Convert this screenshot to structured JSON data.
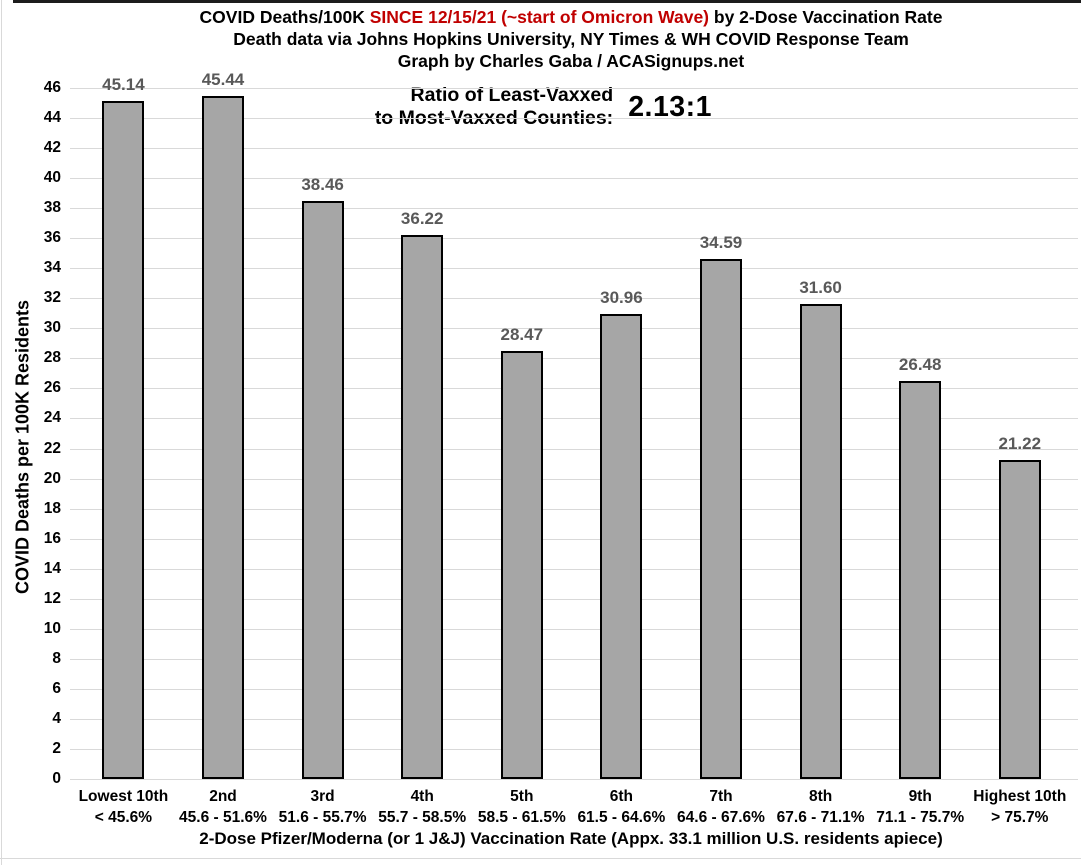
{
  "header": {
    "title_part1": "COVID Deaths/100K ",
    "title_part2_red": "SINCE 12/15/21 (~start of Omicron Wave)",
    "title_part3": " by 2-Dose Vaccination Rate",
    "subtitle1": "Death data via Johns Hopkins University, NY Times & WH COVID Response Team",
    "subtitle2": "Graph by Charles Gaba / ACASignups.net"
  },
  "annotation": {
    "label_line1": "Ratio of Least-Vaxxed",
    "label_line2": "to Most-Vaxxed Counties:",
    "value": "2.13:1"
  },
  "chart_data": {
    "type": "bar",
    "title": "COVID Deaths/100K SINCE 12/15/21 (~start of Omicron Wave) by 2-Dose Vaccination Rate",
    "subtitle": "Death data via Johns Hopkins University, NY Times & WH COVID Response Team",
    "credit": "Graph by Charles Gaba / ACASignups.net",
    "categories": [
      {
        "label": "Lowest 10th",
        "range": "< 45.6%"
      },
      {
        "label": "2nd",
        "range": "45.6 - 51.6%"
      },
      {
        "label": "3rd",
        "range": "51.6 - 55.7%"
      },
      {
        "label": "4th",
        "range": "55.7 - 58.5%"
      },
      {
        "label": "5th",
        "range": "58.5 - 61.5%"
      },
      {
        "label": "6th",
        "range": "61.5 - 64.6%"
      },
      {
        "label": "7th",
        "range": "64.6 - 67.6%"
      },
      {
        "label": "8th",
        "range": "67.6 - 71.1%"
      },
      {
        "label": "9th",
        "range": "71.1 - 75.7%"
      },
      {
        "label": "Highest 10th",
        "range": "> 75.7%"
      }
    ],
    "values": [
      45.14,
      45.44,
      38.46,
      36.22,
      28.47,
      30.96,
      34.59,
      31.6,
      26.48,
      21.22
    ],
    "value_labels": [
      "45.14",
      "45.44",
      "38.46",
      "36.22",
      "28.47",
      "30.96",
      "34.59",
      "31.60",
      "26.48",
      "21.22"
    ],
    "xlabel": "2-Dose Pfizer/Moderna (or 1 J&J) Vaccination Rate (Appx. 33.1 million U.S. residents apiece)",
    "ylabel": "COVID Deaths per 100K Residents",
    "ylim": [
      0,
      46
    ],
    "ytick_step": 2,
    "grid": true,
    "legend": "none",
    "ratio_annotation": "Ratio of Least-Vaxxed to Most-Vaxxed Counties: 2.13:1",
    "colors": {
      "bar_fill": "#a6a6a6",
      "bar_border": "#000000",
      "gridline": "#d9d9d9",
      "value_label": "#595959",
      "title_red": "#c00000",
      "text": "#000000"
    }
  }
}
